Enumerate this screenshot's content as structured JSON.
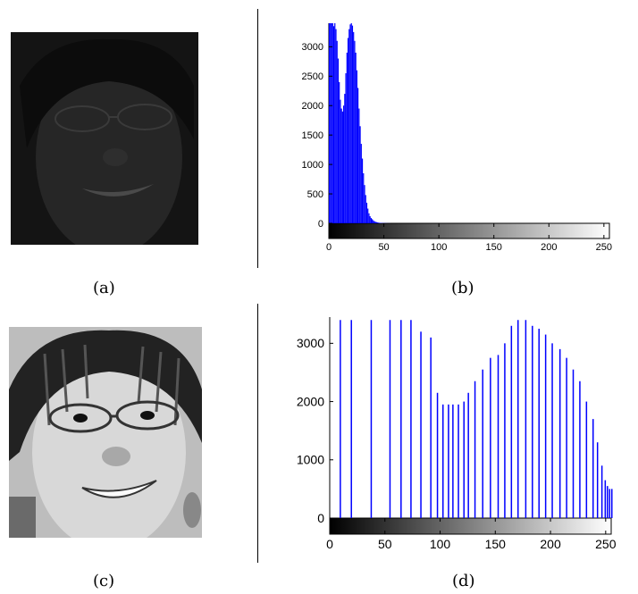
{
  "captions": {
    "a": "(a)",
    "b": "(b)",
    "c": "(c)",
    "d": "(d)"
  },
  "colors": {
    "bar": "#0000ff",
    "face_dark": "#171717",
    "face_bright": "#c9c9c9"
  },
  "chart_data": [
    {
      "type": "bar",
      "title": "",
      "xlabel": "",
      "ylabel": "",
      "xlim": [
        0,
        255
      ],
      "ylim": [
        -300,
        3400
      ],
      "x_ticks": [
        0,
        50,
        100,
        150,
        200,
        250
      ],
      "y_ticks": [
        0,
        500,
        1000,
        1500,
        2000,
        2500,
        3000
      ],
      "x": [
        0,
        1,
        2,
        3,
        4,
        5,
        6,
        7,
        8,
        9,
        10,
        11,
        12,
        13,
        14,
        15,
        16,
        17,
        18,
        19,
        20,
        21,
        22,
        23,
        24,
        25,
        26,
        27,
        28,
        29,
        30,
        31,
        32,
        33,
        34,
        35,
        36,
        37,
        38,
        39,
        40,
        41,
        42,
        43,
        44,
        45,
        46,
        47,
        48,
        49,
        50,
        51,
        52,
        53,
        54,
        55
      ],
      "values": [
        3400,
        3400,
        3400,
        3400,
        3350,
        3400,
        3300,
        3100,
        2800,
        2400,
        2100,
        1950,
        1900,
        2000,
        2200,
        2550,
        2900,
        3150,
        3300,
        3380,
        3400,
        3360,
        3250,
        3100,
        2900,
        2600,
        2300,
        1950,
        1650,
        1350,
        1100,
        850,
        650,
        480,
        350,
        250,
        170,
        120,
        90,
        70,
        50,
        35,
        25,
        20,
        15,
        10,
        8,
        6,
        5,
        4,
        3,
        2,
        2,
        1,
        1,
        1
      ],
      "colorbar": "grayscale 0-255"
    },
    {
      "type": "bar",
      "title": "",
      "xlabel": "",
      "ylabel": "",
      "xlim": [
        0,
        255
      ],
      "ylim": [
        -300,
        3450
      ],
      "x_ticks": [
        0,
        50,
        100,
        150,
        200,
        250
      ],
      "y_ticks": [
        0,
        1000,
        2000,
        3000
      ],
      "x": [
        9,
        19,
        37,
        54,
        64,
        73,
        82,
        91,
        97,
        102,
        107,
        111,
        116,
        121,
        125,
        131,
        138,
        145,
        152,
        158,
        164,
        170,
        177,
        183,
        189,
        195,
        201,
        208,
        214,
        220,
        226,
        232,
        238,
        242,
        246,
        249,
        251,
        253,
        255
      ],
      "values": [
        3400,
        3400,
        3400,
        3400,
        3400,
        3400,
        3200,
        3100,
        2150,
        1950,
        1950,
        1950,
        1950,
        2000,
        2150,
        2350,
        2550,
        2750,
        2800,
        3000,
        3300,
        3400,
        3400,
        3300,
        3250,
        3150,
        3000,
        2900,
        2750,
        2550,
        2350,
        2000,
        1700,
        1300,
        900,
        650,
        550,
        500,
        500
      ],
      "colorbar": "grayscale 0-255"
    }
  ]
}
